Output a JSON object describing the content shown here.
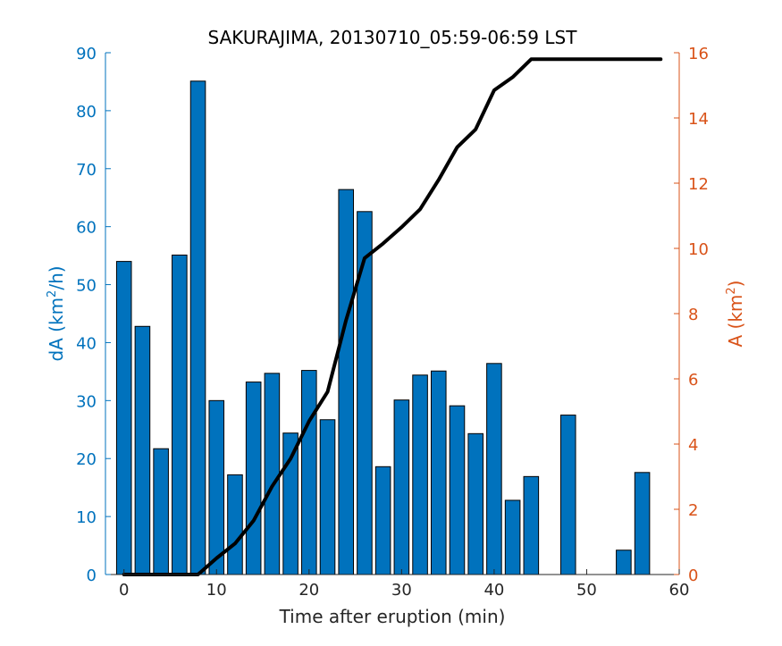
{
  "chart_data": {
    "type": "bar",
    "title": "SAKURAJIMA, 20130710_05:59-06:59 LST",
    "xlabel": "Time after eruption (min)",
    "ylabel_left": {
      "base": "dA (km",
      "sup": "2",
      "tail": "/h)"
    },
    "ylabel_right": {
      "base": "A (km",
      "sup": "2",
      "tail": ")"
    },
    "xlim": [
      -2,
      60
    ],
    "ylim_left": [
      0,
      90
    ],
    "ylim_right": [
      0,
      16
    ],
    "xticks": [
      0,
      10,
      20,
      30,
      40,
      50,
      60
    ],
    "yticks_left": [
      0,
      10,
      20,
      30,
      40,
      50,
      60,
      70,
      80,
      90
    ],
    "yticks_right": [
      0,
      2,
      4,
      6,
      8,
      10,
      12,
      14,
      16
    ],
    "xtick_labels": [
      "0",
      "10",
      "20",
      "30",
      "40",
      "50",
      "60"
    ],
    "ytick_labels_left": [
      "0",
      "10",
      "20",
      "30",
      "40",
      "50",
      "60",
      "70",
      "80",
      "90"
    ],
    "ytick_labels_right": [
      "0",
      "2",
      "4",
      "6",
      "8",
      "10",
      "12",
      "14",
      "16"
    ],
    "grid": false,
    "bars": {
      "x": [
        0,
        2,
        4,
        6,
        8,
        10,
        12,
        14,
        16,
        18,
        20,
        22,
        24,
        26,
        28,
        30,
        32,
        34,
        36,
        38,
        40,
        42,
        44,
        46,
        48,
        50,
        52,
        54,
        56
      ],
      "values": [
        54.0,
        42.8,
        21.7,
        55.1,
        85.1,
        30.0,
        17.2,
        33.2,
        34.7,
        24.4,
        35.2,
        26.7,
        66.4,
        62.6,
        18.6,
        30.1,
        34.4,
        35.1,
        29.1,
        24.3,
        36.4,
        12.8,
        16.9,
        0,
        27.5,
        0,
        0,
        4.2,
        17.6
      ],
      "color": "#0072BD"
    },
    "line": {
      "x": [
        0,
        2,
        4,
        6,
        8,
        10,
        12,
        14,
        16,
        18,
        20,
        22,
        24,
        26,
        28,
        30,
        32,
        34,
        36,
        38,
        40,
        42,
        44,
        46,
        48,
        50,
        52,
        54,
        56,
        58
      ],
      "values": [
        0,
        0,
        0,
        0,
        0,
        0.5,
        0.95,
        1.65,
        2.7,
        3.55,
        4.7,
        5.6,
        7.8,
        9.7,
        10.15,
        10.65,
        11.2,
        12.1,
        13.1,
        13.65,
        14.85,
        15.25,
        15.8,
        15.8,
        15.8,
        15.8,
        15.8,
        15.8,
        15.8,
        15.8
      ],
      "color": "#000000"
    },
    "left_axis_color": "#0072BD",
    "right_axis_color": "#D95319"
  }
}
